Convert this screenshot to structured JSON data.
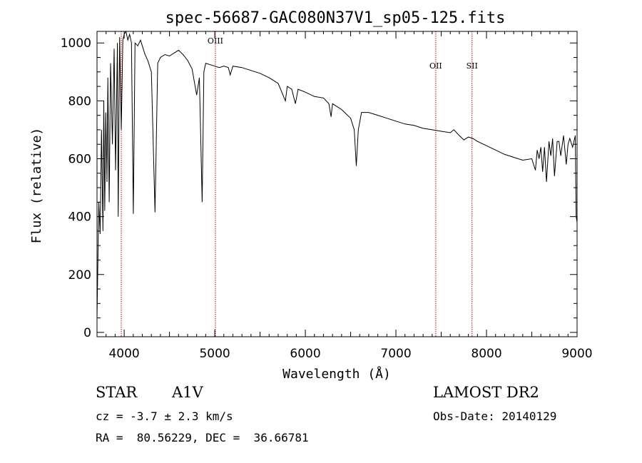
{
  "chart_data": {
    "type": "line",
    "title": "spec-56687-GAC080N37V1_sp05-125.fits",
    "xlabel": "Wavelength (Å)",
    "ylabel": "Flux (relative)",
    "xlim": [
      3700,
      9000
    ],
    "ylim": [
      -15,
      1040
    ],
    "xticks": [
      4000,
      5000,
      6000,
      7000,
      8000,
      9000
    ],
    "yticks": [
      0,
      200,
      400,
      600,
      800,
      1000
    ],
    "grid": false,
    "line_color": "#000000",
    "marker_color": "#cc0000",
    "lines": [
      {
        "wavelength": 3968,
        "label": ""
      },
      {
        "wavelength": 5007,
        "label": "OIII"
      },
      {
        "wavelength": 7440,
        "label": "OII"
      },
      {
        "wavelength": 7840,
        "label": "SII"
      }
    ],
    "spectrum": {
      "x": [
        3700,
        3720,
        3735,
        3750,
        3765,
        3775,
        3785,
        3797,
        3810,
        3820,
        3835,
        3850,
        3870,
        3889,
        3905,
        3925,
        3934,
        3950,
        3968,
        3985,
        4000,
        4020,
        4040,
        4060,
        4080,
        4101,
        4120,
        4150,
        4180,
        4200,
        4230,
        4260,
        4300,
        4340,
        4370,
        4400,
        4450,
        4500,
        4550,
        4600,
        4650,
        4700,
        4750,
        4800,
        4830,
        4861,
        4880,
        4900,
        4950,
        5000,
        5050,
        5100,
        5150,
        5170,
        5200,
        5300,
        5400,
        5500,
        5600,
        5700,
        5780,
        5800,
        5850,
        5890,
        5920,
        6000,
        6100,
        6200,
        6260,
        6284,
        6300,
        6400,
        6500,
        6540,
        6563,
        6585,
        6620,
        6700,
        6800,
        6900,
        7000,
        7100,
        7200,
        7300,
        7400,
        7500,
        7600,
        7640,
        7700,
        7750,
        7800,
        7850,
        7900,
        8000,
        8100,
        8200,
        8300,
        8400,
        8500,
        8540,
        8560,
        8580,
        8600,
        8620,
        8640,
        8662,
        8690,
        8710,
        8730,
        8750,
        8780,
        8800,
        8820,
        8850,
        8880,
        8900,
        8920,
        8950,
        8980,
        8990,
        9000
      ],
      "y": [
        50,
        450,
        340,
        700,
        350,
        800,
        420,
        760,
        520,
        880,
        450,
        930,
        650,
        980,
        560,
        1000,
        400,
        1020,
        700,
        1010,
        1030,
        1040,
        1010,
        1030,
        1000,
        410,
        1000,
        990,
        1010,
        990,
        960,
        940,
        900,
        415,
        930,
        950,
        960,
        955,
        965,
        975,
        960,
        940,
        910,
        820,
        880,
        450,
        900,
        930,
        925,
        920,
        915,
        920,
        915,
        890,
        920,
        915,
        905,
        895,
        880,
        860,
        800,
        850,
        840,
        790,
        840,
        830,
        815,
        810,
        790,
        745,
        790,
        770,
        740,
        700,
        575,
        700,
        760,
        760,
        750,
        740,
        730,
        720,
        715,
        705,
        700,
        695,
        690,
        700,
        680,
        665,
        675,
        670,
        660,
        645,
        630,
        615,
        605,
        595,
        600,
        560,
        630,
        600,
        640,
        555,
        640,
        520,
        660,
        610,
        670,
        540,
        660,
        660,
        610,
        680,
        580,
        650,
        670,
        640,
        680,
        400,
        380
      ]
    }
  },
  "info": {
    "object_class": "STAR",
    "subclass": "A1V",
    "survey": "LAMOST DR2",
    "redshift_text": "cz = -3.7 ± 2.3 km/s",
    "obs_date_text": "Obs-Date: 20140129",
    "coords_text": "RA =  80.56229, DEC =  36.66781"
  }
}
